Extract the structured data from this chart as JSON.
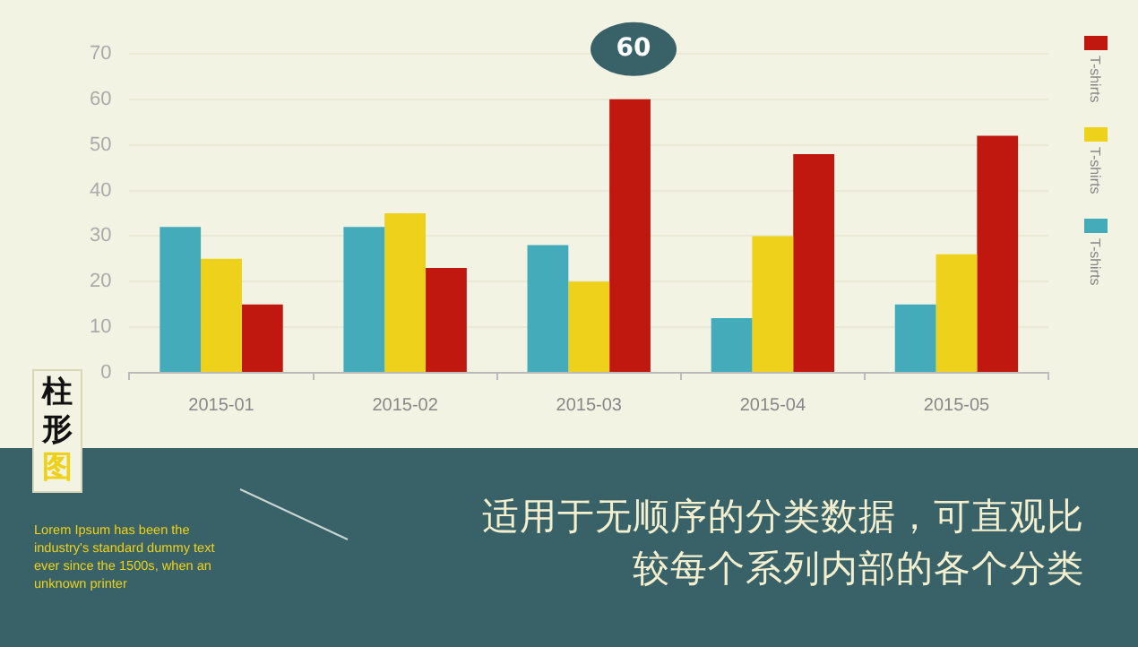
{
  "chart_data": {
    "type": "bar",
    "title": "柱形图",
    "subtitle": "适用于无顺序的分类数据，可直观比较每个系列内部的各个分类",
    "annotations": [
      "Lorem Ipsum has been the industry's standard dummy text ever since the 1500s, when an unknown printer"
    ],
    "categories": [
      "2015-01",
      "2015-02",
      "2015-03",
      "2015-04",
      "2015-05"
    ],
    "series": [
      {
        "name": "T-shirts",
        "color": "#44abbb",
        "values": [
          32,
          32,
          28,
          12,
          15
        ]
      },
      {
        "name": "T-shirts",
        "color": "#eed11a",
        "values": [
          25,
          35,
          20,
          30,
          26
        ]
      },
      {
        "name": "T-shirts",
        "color": "#c0170f",
        "values": [
          15,
          23,
          60,
          48,
          52
        ],
        "value_labels": [
          null,
          null,
          "60",
          null,
          null
        ]
      }
    ],
    "ylim": [
      0,
      70
    ],
    "yticks": [
      0,
      10,
      20,
      30,
      40,
      50,
      60,
      70
    ],
    "grid": "y",
    "legend": "right"
  }
}
